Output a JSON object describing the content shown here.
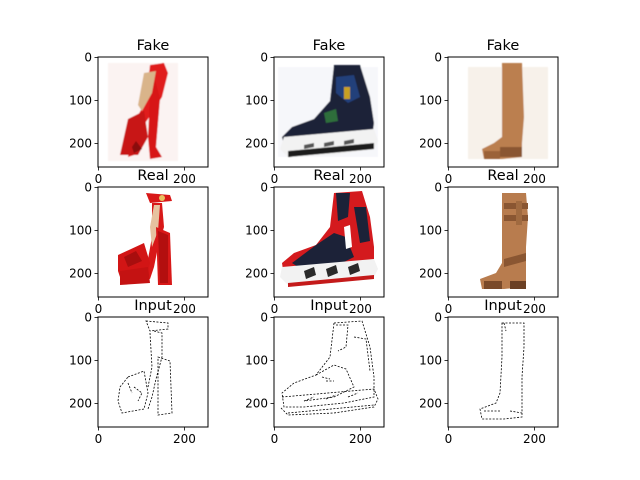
{
  "figure": {
    "panels": [
      {
        "title": "Fake",
        "subject": "red-platform-heel",
        "row_kind": "fake"
      },
      {
        "title": "Fake",
        "subject": "high-top-sneaker",
        "row_kind": "fake"
      },
      {
        "title": "Fake",
        "subject": "tall-tan-boot",
        "row_kind": "fake"
      },
      {
        "title": "Real",
        "subject": "red-platform-heel",
        "row_kind": "real"
      },
      {
        "title": "Real",
        "subject": "high-top-sneaker",
        "row_kind": "real"
      },
      {
        "title": "Real",
        "subject": "tall-tan-boot",
        "row_kind": "real"
      },
      {
        "title": "Input",
        "subject": "red-platform-heel",
        "row_kind": "input"
      },
      {
        "title": "Input",
        "subject": "high-top-sneaker",
        "row_kind": "input"
      },
      {
        "title": "Input",
        "subject": "tall-tan-boot",
        "row_kind": "input"
      }
    ],
    "x_ticks": [
      "0",
      "200"
    ],
    "y_ticks": [
      "0",
      "100",
      "200"
    ],
    "colors": {
      "heel_red": "#d81818",
      "heel_red_dark": "#a80e0e",
      "heel_tan": "#d9b48a",
      "sneaker_navy": "#1c2238",
      "sneaker_red": "#d41a1e",
      "sneaker_white": "#f2f2f2",
      "boot_tan": "#b87c4e",
      "boot_dark": "#8a5632",
      "sketch": "#000000"
    }
  }
}
